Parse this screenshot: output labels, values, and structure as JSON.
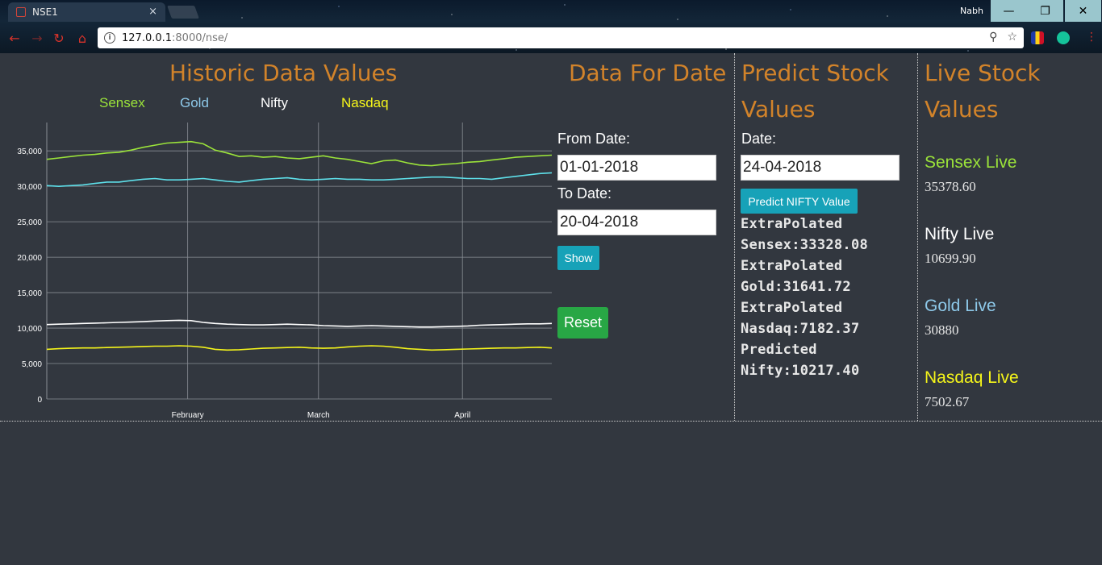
{
  "browser": {
    "tab_title": "NSE1",
    "tab_close": "×",
    "profile_name": "Nabh",
    "url_host": "127.0.0.1",
    "url_path": ":8000/nse/",
    "icons": [
      "back-arrow-icon",
      "forward-arrow-icon",
      "reload-icon",
      "home-icon",
      "info-icon",
      "zoom-icon",
      "star-icon"
    ]
  },
  "historic": {
    "heading": "Historic Data Values",
    "legend": [
      {
        "label": "Sensex",
        "color": "#9be33a"
      },
      {
        "label": "Gold",
        "color": "#8ec9ea"
      },
      {
        "label": "Nifty",
        "color": "#ffffff"
      },
      {
        "label": "Nasdaq",
        "color": "#f5f51a"
      }
    ]
  },
  "chart_data": {
    "type": "line",
    "y_ticks": [
      "0",
      "5,000",
      "10,000",
      "15,000",
      "20,000",
      "25,000",
      "30,000",
      "35,000"
    ],
    "x_ticks": [
      "February",
      "March",
      "April"
    ],
    "ylim": [
      0,
      39000
    ],
    "x_tick_positions": [
      0.279,
      0.538,
      0.823
    ],
    "series": [
      {
        "name": "Sensex",
        "color": "#9be33a",
        "values": [
          33800,
          34000,
          34200,
          34400,
          34500,
          34700,
          34800,
          35100,
          35500,
          35800,
          36100,
          36200,
          36300,
          36000,
          35100,
          34700,
          34200,
          34300,
          34100,
          34200,
          34000,
          33900,
          34100,
          34300,
          34000,
          33800,
          33500,
          33200,
          33600,
          33700,
          33300,
          33000,
          32900,
          33100,
          33200,
          33400,
          33500,
          33700,
          33900,
          34100,
          34200,
          34300,
          34400
        ]
      },
      {
        "name": "Gold",
        "color": "#5ee0ea",
        "values": [
          30100,
          30000,
          30100,
          30200,
          30400,
          30600,
          30600,
          30800,
          31000,
          31100,
          30900,
          30900,
          31000,
          31100,
          30900,
          30700,
          30600,
          30800,
          31000,
          31100,
          31200,
          31000,
          30900,
          31000,
          31100,
          31000,
          31000,
          30900,
          30900,
          31000,
          31100,
          31200,
          31300,
          31300,
          31200,
          31100,
          31100,
          31000,
          31200,
          31400,
          31600,
          31800,
          31900
        ]
      },
      {
        "name": "Nifty",
        "color": "#ffffff",
        "values": [
          10500,
          10550,
          10600,
          10650,
          10700,
          10750,
          10800,
          10850,
          10900,
          11000,
          11050,
          11100,
          11050,
          10800,
          10650,
          10550,
          10500,
          10450,
          10450,
          10500,
          10550,
          10500,
          10450,
          10350,
          10300,
          10250,
          10300,
          10350,
          10300,
          10250,
          10200,
          10150,
          10150,
          10200,
          10250,
          10300,
          10400,
          10450,
          10500,
          10550,
          10600,
          10600,
          10650
        ]
      },
      {
        "name": "Nasdaq",
        "color": "#f5f51a",
        "values": [
          7000,
          7100,
          7150,
          7200,
          7200,
          7250,
          7300,
          7350,
          7400,
          7450,
          7450,
          7500,
          7450,
          7300,
          7000,
          6900,
          6950,
          7050,
          7150,
          7200,
          7250,
          7300,
          7200,
          7150,
          7200,
          7350,
          7450,
          7500,
          7450,
          7300,
          7100,
          7000,
          6900,
          6950,
          7000,
          7050,
          7100,
          7150,
          7200,
          7200,
          7250,
          7300,
          7200
        ]
      }
    ]
  },
  "data_for_date": {
    "heading": "Data For Date",
    "from_label": "From Date:",
    "from_value": "01-01-2018",
    "to_label": "To Date:",
    "to_value": "20-04-2018",
    "show_button": "Show",
    "reset_button": "Reset"
  },
  "predict": {
    "heading_line1": "Predict Stock",
    "heading_line2": "Values",
    "date_label": "Date:",
    "date_value": "24-04-2018",
    "predict_button": "Predict NIFTY Value",
    "results": [
      "ExtraPolated",
      "Sensex:33328.08",
      "ExtraPolated",
      "Gold:31641.72",
      "ExtraPolated",
      "Nasdaq:7182.37",
      "Predicted",
      "Nifty:10217.40"
    ]
  },
  "live": {
    "heading_line1": "Live Stock",
    "heading_line2": "Values",
    "items": [
      {
        "label": "Sensex Live",
        "value": "35378.60",
        "color": "#9be33a"
      },
      {
        "label": "Nifty Live",
        "value": "10699.90",
        "color": "#ffffff"
      },
      {
        "label": "Gold Live",
        "value": "30880",
        "color": "#8ec9ea"
      },
      {
        "label": "Nasdaq Live",
        "value": "7502.67",
        "color": "#f5f51a"
      }
    ]
  }
}
